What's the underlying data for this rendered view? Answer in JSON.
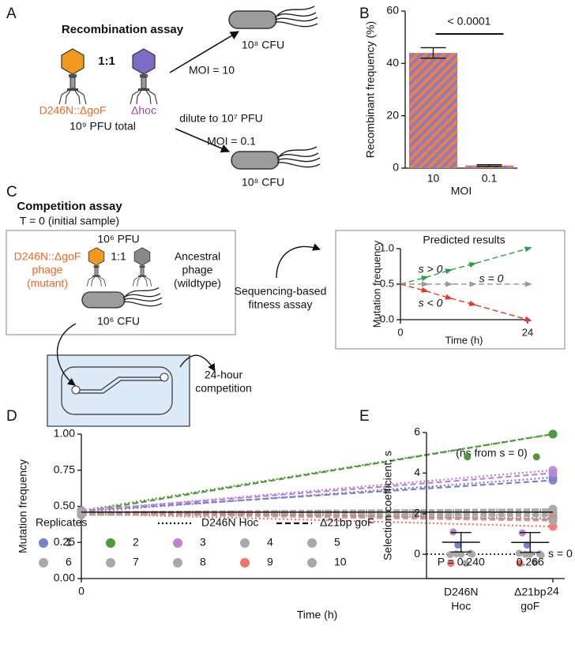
{
  "panels": [
    "A",
    "B",
    "C",
    "D",
    "E"
  ],
  "diagram_a": {
    "title": "Recombination assay",
    "ratio": "1:1",
    "mutant": "D246N::ΔgoF",
    "other": "Δhoc",
    "total": "10⁹ PFU total",
    "moi_high": "MOI = 10",
    "cfu_high": "10⁸ CFU",
    "dilute": "dilute to 10⁷ PFU",
    "moi_low": "MOI = 0.1",
    "cfu_low": "10⁸ CFU"
  },
  "diagram_c": {
    "title": "Competition assay",
    "subtitle": "T = 0 (initial sample)",
    "pfu": "10⁶ PFU",
    "ratio": "1:1",
    "mutant": [
      "D246N::ΔgoF",
      "phage",
      "(mutant)"
    ],
    "ancestral": [
      "Ancestral",
      "phage",
      "(wildtype)"
    ],
    "cfu": "10⁶ CFU",
    "competition": [
      "24-hour",
      "competition"
    ],
    "sequencing": [
      "Sequencing-based",
      "fitness assay"
    ]
  },
  "chart_data": [
    {
      "type": "bar",
      "categories": [
        "10",
        "0.1"
      ],
      "values": [
        44,
        1
      ],
      "errors": [
        2,
        0.3
      ],
      "color": "#f07f3c",
      "hatch_color": "#8a7bc9",
      "ylim": [
        0,
        60
      ],
      "yticks": [
        0,
        20,
        40,
        60
      ],
      "ylabel": "Recombinant frequency (%)",
      "xlabel": "MOI",
      "annotation": "< 0.0001"
    },
    {
      "type": "line",
      "title": "Predicted results",
      "x": [
        0,
        4.5,
        9,
        13.5,
        24
      ],
      "xlim": [
        0,
        24
      ],
      "xticks": [
        0,
        24
      ],
      "ylim": [
        0,
        1
      ],
      "yticks": [
        {
          "value": 0,
          "label": "0.0"
        },
        0.5,
        {
          "value": 1,
          "label": "1.0"
        }
      ],
      "xlabel": "Time (h)",
      "ylabel": "Mutation frequency",
      "dash": "dashed",
      "marker": "triangle",
      "series": [
        {
          "name": "s > 0",
          "color": "#2f9e45",
          "values": [
            0.5,
            0.59,
            0.69,
            0.78,
            1.0
          ]
        },
        {
          "name": "s = 0",
          "color": "#9a9a9a",
          "values": [
            0.5,
            0.5,
            0.5,
            0.5,
            0.5
          ]
        },
        {
          "name": "s < 0",
          "color": "#e0392b",
          "values": [
            0.5,
            0.41,
            0.31,
            0.22,
            0.0
          ]
        }
      ]
    },
    {
      "type": "line",
      "x": [
        0,
        24
      ],
      "xlim": [
        0,
        24
      ],
      "xticks": [
        0,
        24
      ],
      "ylim": [
        0,
        1
      ],
      "yticks": [
        {
          "value": 0,
          "label": "0.00"
        },
        {
          "value": 0.25,
          "label": "0.25"
        },
        {
          "value": 0.5,
          "label": "0.50"
        },
        {
          "value": 0.75,
          "label": "0.75"
        },
        {
          "value": 1,
          "label": "1.00"
        }
      ],
      "xlabel": "Time (h)",
      "ylabel": "Mutation frequency",
      "legend_title": "Replicates",
      "marker": "circle",
      "line_styles": [
        {
          "name": "D246N Hoc",
          "dash": "dotted"
        },
        {
          "name": "Δ21bp goF",
          "dash": "dashed"
        }
      ],
      "mean": [
        0.46,
        0.46
      ],
      "series": [
        {
          "name": "1",
          "color": "#7b80c8",
          "values": [
            [
              0.46,
              0.7
            ],
            [
              0.47,
              0.68
            ]
          ]
        },
        {
          "name": "2",
          "color": "#4e9a3c",
          "values": [
            [
              0.47,
              1.0
            ],
            [
              0.46,
              1.0
            ]
          ]
        },
        {
          "name": "3",
          "color": "#bb86cc",
          "values": [
            [
              0.47,
              0.75
            ],
            [
              0.47,
              0.73
            ]
          ]
        },
        {
          "name": "4",
          "color": "#a9a9a9",
          "values": [
            [
              0.46,
              0.46
            ],
            [
              0.45,
              0.47
            ]
          ]
        },
        {
          "name": "5",
          "color": "#a9a9a9",
          "values": [
            [
              0.45,
              0.44
            ],
            [
              0.46,
              0.48
            ]
          ]
        },
        {
          "name": "6",
          "color": "#a9a9a9",
          "values": [
            [
              0.46,
              0.41
            ],
            [
              0.45,
              0.43
            ]
          ]
        },
        {
          "name": "7",
          "color": "#a9a9a9",
          "values": [
            [
              0.44,
              0.47
            ],
            [
              0.46,
              0.44
            ]
          ]
        },
        {
          "name": "8",
          "color": "#a9a9a9",
          "values": [
            [
              0.45,
              0.42
            ],
            [
              0.44,
              0.45
            ]
          ]
        },
        {
          "name": "9",
          "color": "#f2726e",
          "values": [
            [
              0.45,
              0.36
            ],
            [
              0.46,
              0.41
            ]
          ]
        },
        {
          "name": "10",
          "color": "#a9a9a9",
          "values": [
            [
              0.46,
              0.48
            ],
            [
              0.45,
              0.4
            ]
          ]
        }
      ]
    },
    {
      "type": "strip",
      "categories": [
        [
          "D246N",
          "Hoc"
        ],
        [
          "Δ21bp",
          "goF"
        ]
      ],
      "ylim": [
        -1.2,
        6
      ],
      "yticks": [
        0,
        2,
        4,
        6
      ],
      "ylabel": "Selection coefficient, s",
      "annotation": "(ns from s = 0)",
      "hline": 0,
      "hline_label": "s = 0",
      "p_labels": [
        "P = 0.240",
        "0.266"
      ],
      "means": [
        0.59,
        0.58
      ],
      "errors": [
        0.48,
        0.49
      ],
      "series": [
        {
          "color": "#7b80c8",
          "values": [
            0.45,
            0.45
          ]
        },
        {
          "color": "#4e9a3c",
          "values": [
            4.8,
            4.8
          ]
        },
        {
          "color": "#bb86cc",
          "values": [
            1.1,
            1.05
          ]
        },
        {
          "color": "#a9a9a9",
          "values": [
            0.05,
            0.02
          ]
        },
        {
          "color": "#a9a9a9",
          "values": [
            0.0,
            0.0
          ]
        },
        {
          "color": "#a9a9a9",
          "values": [
            -0.02,
            0.05
          ]
        },
        {
          "color": "#a9a9a9",
          "values": [
            0.0,
            -0.05
          ]
        },
        {
          "color": "#a9a9a9",
          "values": [
            0.02,
            0.0
          ]
        },
        {
          "color": "#f2726e",
          "values": [
            -0.45,
            -0.45
          ]
        },
        {
          "color": "#a9a9a9",
          "values": [
            -0.45,
            -0.4
          ]
        }
      ]
    }
  ]
}
